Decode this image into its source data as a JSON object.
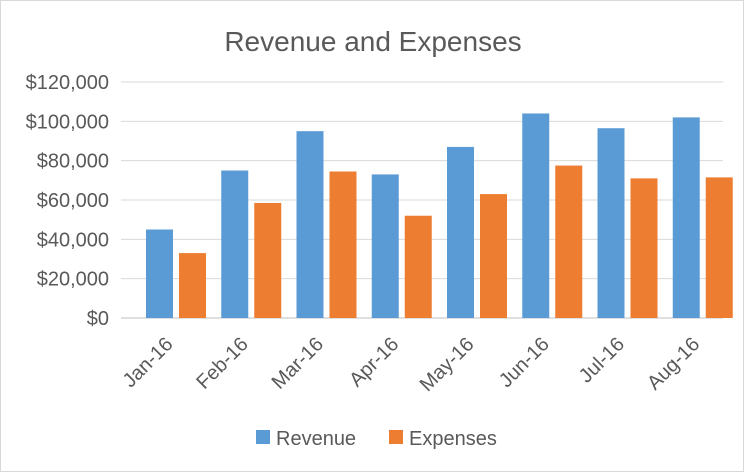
{
  "chart_data": {
    "type": "bar",
    "title": "Revenue and Expenses",
    "xlabel": "",
    "ylabel": "",
    "categories": [
      "Jan-16",
      "Feb-16",
      "Mar-16",
      "Apr-16",
      "May-16",
      "Jun-16",
      "Jul-16",
      "Aug-16"
    ],
    "series": [
      {
        "name": "Revenue",
        "color": "#5b9bd5",
        "values": [
          45000,
          75000,
          95000,
          73000,
          87000,
          104000,
          96500,
          102000
        ]
      },
      {
        "name": "Expenses",
        "color": "#ed7d31",
        "values": [
          33000,
          58500,
          74500,
          52000,
          63000,
          77500,
          71000,
          71500
        ]
      }
    ],
    "ylim": [
      0,
      120000
    ],
    "yticks": [
      0,
      20000,
      40000,
      60000,
      80000,
      100000,
      120000
    ],
    "ytick_labels": [
      "$0",
      "$20,000",
      "$40,000",
      "$60,000",
      "$80,000",
      "$100,000",
      "$120,000"
    ],
    "grid": true,
    "legend_position": "bottom"
  }
}
